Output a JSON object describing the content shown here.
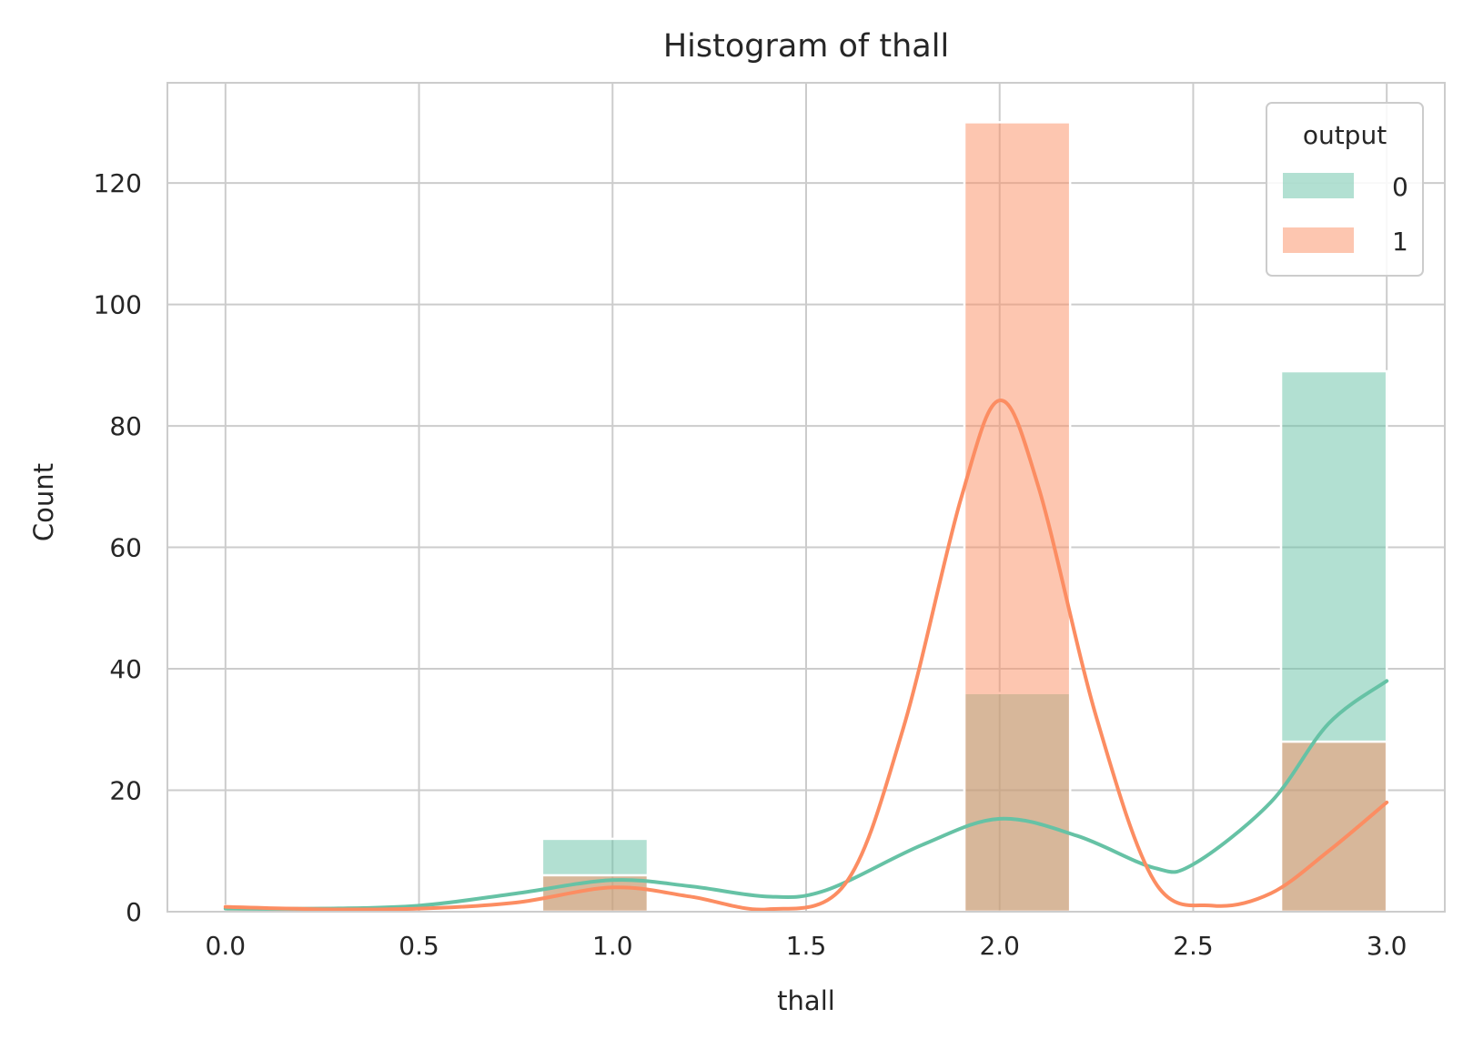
{
  "chart_data": {
    "type": "bar",
    "title": "Histogram of thall",
    "xlabel": "thall",
    "ylabel": "Count",
    "xlim": [
      -0.15,
      3.15
    ],
    "ylim": [
      0,
      136.5
    ],
    "xticks": [
      "0.0",
      "0.5",
      "1.0",
      "1.5",
      "2.0",
      "2.5",
      "3.0"
    ],
    "yticks": [
      "0",
      "20",
      "40",
      "60",
      "80",
      "100",
      "120"
    ],
    "grid": true,
    "legend": {
      "title": "output",
      "placement": "top-right"
    },
    "bins": [
      {
        "x0": 0.0,
        "x1": 0.273
      },
      {
        "x0": 0.818,
        "x1": 1.091
      },
      {
        "x0": 1.909,
        "x1": 2.182
      },
      {
        "x0": 2.727,
        "x1": 3.0
      }
    ],
    "series": [
      {
        "name": "0",
        "color": "#66c2a5",
        "values": [
          1,
          12,
          36,
          89
        ],
        "kde": [
          [
            0.0,
            0.5
          ],
          [
            0.25,
            0.5
          ],
          [
            0.5,
            1.0
          ],
          [
            0.75,
            3.0
          ],
          [
            1.0,
            5.2
          ],
          [
            1.2,
            4.2
          ],
          [
            1.4,
            2.5
          ],
          [
            1.55,
            3.5
          ],
          [
            1.8,
            11.0
          ],
          [
            2.0,
            15.3
          ],
          [
            2.2,
            12.5
          ],
          [
            2.4,
            7.2
          ],
          [
            2.5,
            7.8
          ],
          [
            2.7,
            18.0
          ],
          [
            2.85,
            31.0
          ],
          [
            3.0,
            38.0
          ]
        ]
      },
      {
        "name": "1",
        "color": "#fc8d62",
        "values": [
          1,
          6,
          130,
          28
        ],
        "kde": [
          [
            0.0,
            0.8
          ],
          [
            0.25,
            0.4
          ],
          [
            0.5,
            0.5
          ],
          [
            0.75,
            1.5
          ],
          [
            1.0,
            4.0
          ],
          [
            1.2,
            2.5
          ],
          [
            1.4,
            0.4
          ],
          [
            1.6,
            4.5
          ],
          [
            1.75,
            30.0
          ],
          [
            1.9,
            68.0
          ],
          [
            2.0,
            84.2
          ],
          [
            2.1,
            70.0
          ],
          [
            2.25,
            32.0
          ],
          [
            2.4,
            5.0
          ],
          [
            2.55,
            1.0
          ],
          [
            2.7,
            3.0
          ],
          [
            2.85,
            10.0
          ],
          [
            3.0,
            18.0
          ]
        ]
      }
    ]
  }
}
